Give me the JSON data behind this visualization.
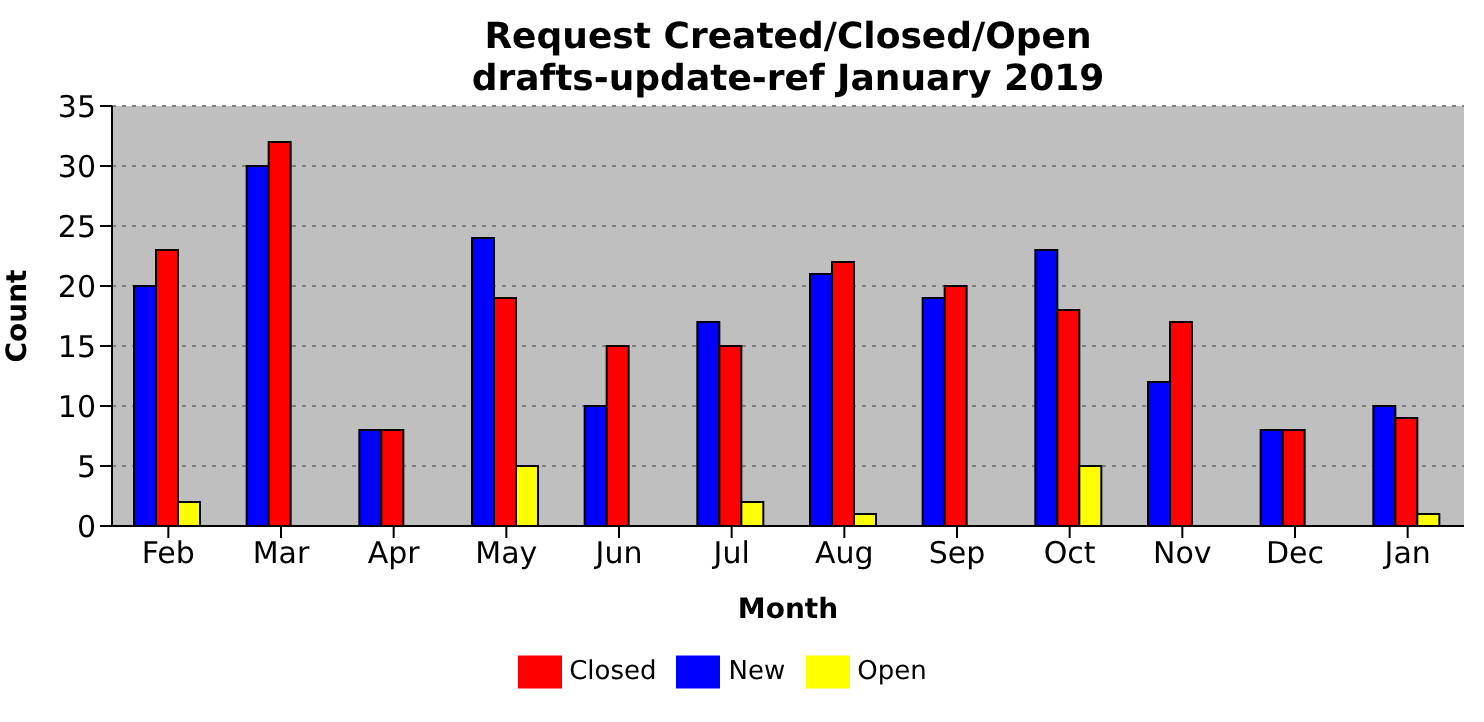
{
  "chart_data": {
    "type": "bar",
    "title": "Request Created/Closed/Open\ndrafts-update-ref January 2019",
    "xlabel": "Month",
    "ylabel": "Count",
    "categories": [
      "Feb",
      "Mar",
      "Apr",
      "May",
      "Jun",
      "Jul",
      "Aug",
      "Sep",
      "Oct",
      "Nov",
      "Dec",
      "Jan"
    ],
    "series": [
      {
        "name": "New",
        "color": "#0000ff",
        "values": [
          20,
          30,
          8,
          24,
          10,
          17,
          21,
          19,
          23,
          12,
          8,
          10
        ]
      },
      {
        "name": "Closed",
        "color": "#ff0000",
        "values": [
          23,
          32,
          8,
          19,
          15,
          15,
          22,
          20,
          18,
          17,
          8,
          9
        ]
      },
      {
        "name": "Open",
        "color": "#ffff00",
        "values": [
          2,
          0,
          0,
          5,
          0,
          2,
          1,
          0,
          5,
          0,
          0,
          1
        ]
      }
    ],
    "ylim": [
      0,
      35
    ],
    "yticks": [
      0,
      5,
      10,
      15,
      20,
      25,
      30,
      35
    ],
    "grid": "y",
    "legend": "bottom"
  }
}
